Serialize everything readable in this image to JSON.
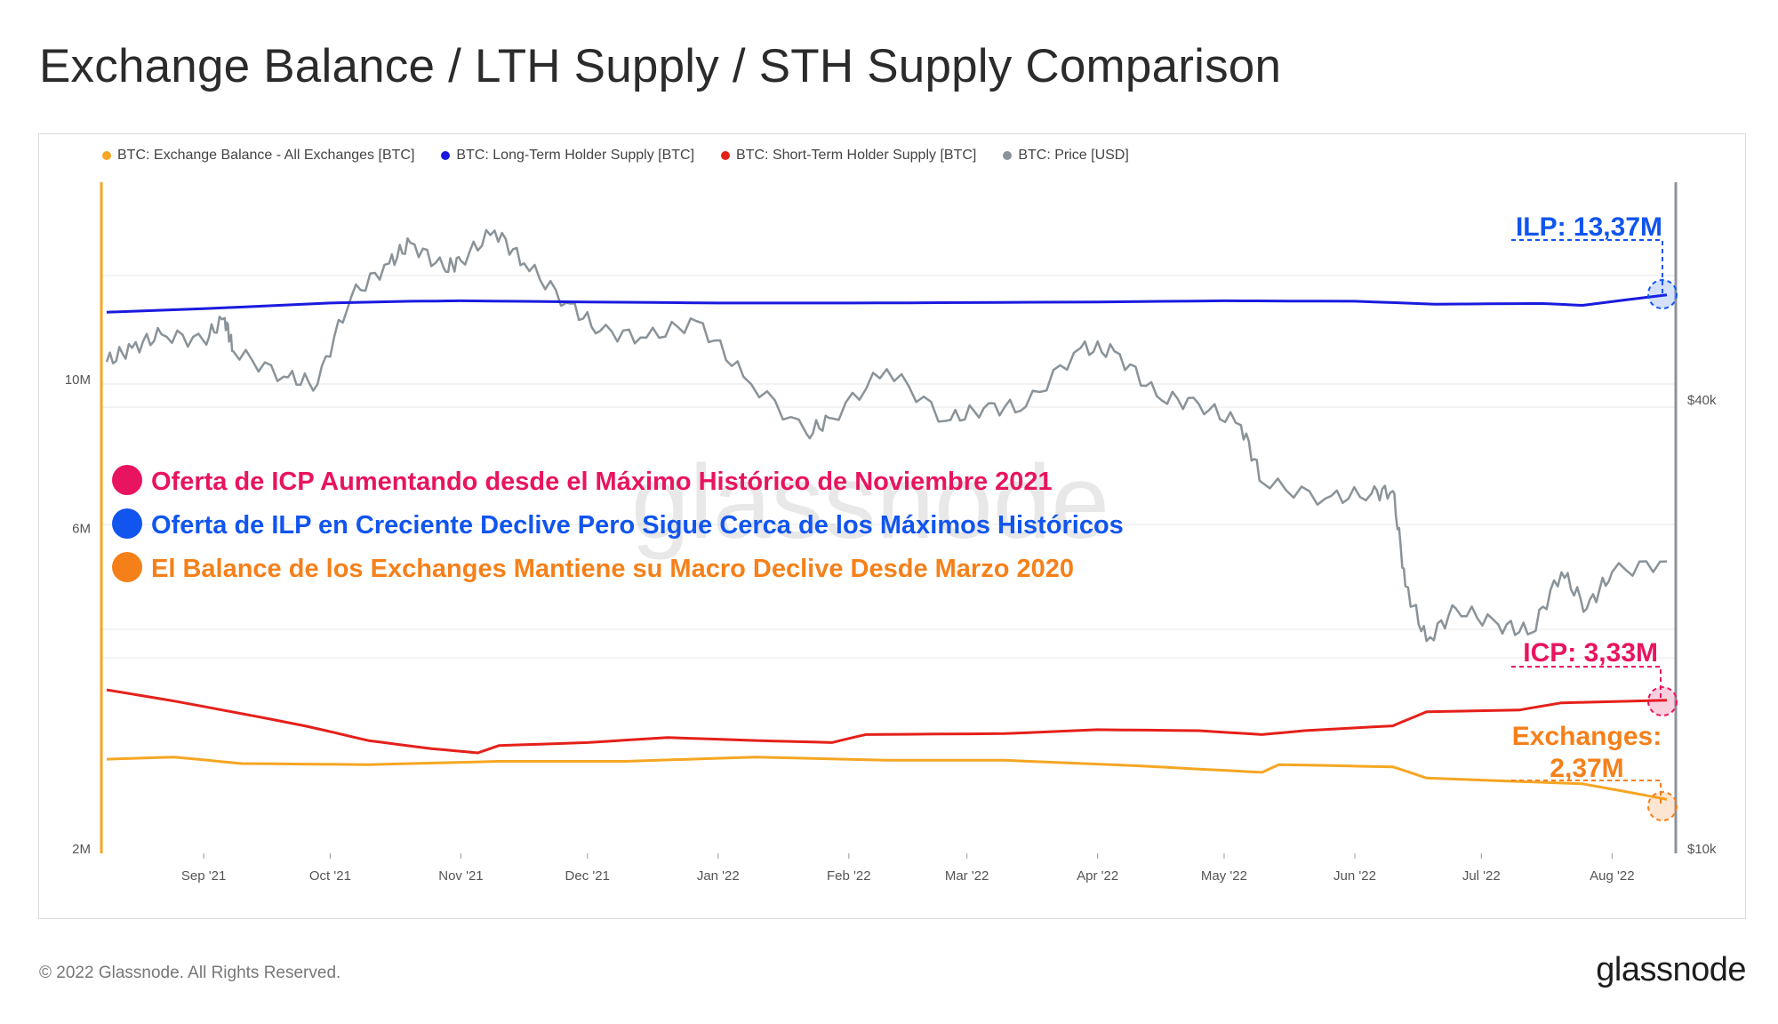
{
  "title": "Exchange Balance / LTH Supply / STH Supply Comparison",
  "footer": "© 2022 Glassnode. All Rights Reserved.",
  "brand": "glassnode",
  "watermark": "glassnode",
  "legend": [
    {
      "label": "BTC: Exchange Balance - All Exchanges [BTC]",
      "color": "#f5a623"
    },
    {
      "label": "BTC: Long-Term Holder Supply [BTC]",
      "color": "#1a1adf"
    },
    {
      "label": "BTC: Short-Term Holder Supply [BTC]",
      "color": "#e5201a"
    },
    {
      "label": "BTC: Price [USD]",
      "color": "#8a9399"
    }
  ],
  "annotations": [
    {
      "text": "Oferta de ICP Aumentando desde el Máximo Histórico de Noviembre 2021",
      "color": "#e8145f"
    },
    {
      "text": "Oferta de ILP en Creciente Declive Pero Sigue Cerca de los Máximos Históricos",
      "color": "#1155ee"
    },
    {
      "text": "El Balance de los Exchanges Mantiene su Macro Declive Desde Marzo 2020",
      "color": "#f5801a"
    }
  ],
  "end_labels": {
    "lth": {
      "text": "ILP: 13,37M",
      "color": "#1155ee"
    },
    "sth": {
      "text": "ICP: 3,33M",
      "color": "#e8145f"
    },
    "exchange_line1": "Exchanges:",
    "exchange_line2": "2,37M",
    "exchange_color": "#f5801a"
  },
  "chart_data": {
    "type": "line",
    "x_ticks": [
      "Sep '21",
      "Oct '21",
      "Nov '21",
      "Dec '21",
      "Jan '22",
      "Feb '22",
      "Mar '22",
      "Apr '22",
      "May '22",
      "Jun '22",
      "Jul '22",
      "Aug '22"
    ],
    "y_left_ticks": [
      "10M",
      "6M",
      "2M"
    ],
    "y_right_ticks": [
      "$40k",
      "$10k"
    ],
    "y_left_scale": "log",
    "y_right_scale": "log",
    "x_range": [
      "2021-08-09",
      "2022-08-14"
    ],
    "series": [
      {
        "name": "BTC: Long-Term Holder Supply [BTC]",
        "axis": "left",
        "color": "#1a1adf",
        "points": [
          [
            "2021-08-09",
            12.6
          ],
          [
            "2021-09-01",
            12.75
          ],
          [
            "2021-10-01",
            13.0
          ],
          [
            "2021-10-20",
            13.08
          ],
          [
            "2021-11-01",
            13.1
          ],
          [
            "2021-12-01",
            13.05
          ],
          [
            "2022-01-01",
            13.0
          ],
          [
            "2022-02-01",
            13.0
          ],
          [
            "2022-03-01",
            13.02
          ],
          [
            "2022-04-01",
            13.05
          ],
          [
            "2022-05-01",
            13.1
          ],
          [
            "2022-06-01",
            13.08
          ],
          [
            "2022-06-20",
            12.95
          ],
          [
            "2022-07-15",
            12.98
          ],
          [
            "2022-07-25",
            12.9
          ],
          [
            "2022-08-14",
            13.37
          ]
        ]
      },
      {
        "name": "BTC: Short-Term Holder Supply [BTC]",
        "axis": "left",
        "color": "#e5201a",
        "points": [
          [
            "2021-08-09",
            3.45
          ],
          [
            "2021-08-25",
            3.32
          ],
          [
            "2021-09-10",
            3.18
          ],
          [
            "2021-09-25",
            3.05
          ],
          [
            "2021-10-10",
            2.9
          ],
          [
            "2021-10-25",
            2.82
          ],
          [
            "2021-11-05",
            2.78
          ],
          [
            "2021-11-10",
            2.85
          ],
          [
            "2021-12-01",
            2.88
          ],
          [
            "2021-12-20",
            2.93
          ],
          [
            "2022-01-10",
            2.9
          ],
          [
            "2022-01-28",
            2.88
          ],
          [
            "2022-02-05",
            2.96
          ],
          [
            "2022-03-10",
            2.97
          ],
          [
            "2022-04-01",
            3.01
          ],
          [
            "2022-04-25",
            3.0
          ],
          [
            "2022-05-10",
            2.96
          ],
          [
            "2022-05-20",
            3.0
          ],
          [
            "2022-06-10",
            3.05
          ],
          [
            "2022-06-18",
            3.2
          ],
          [
            "2022-07-10",
            3.22
          ],
          [
            "2022-07-20",
            3.3
          ],
          [
            "2022-08-14",
            3.33
          ]
        ]
      },
      {
        "name": "BTC: Exchange Balance - All Exchanges [BTC]",
        "axis": "left",
        "color": "#f5a623",
        "points": [
          [
            "2021-08-09",
            2.72
          ],
          [
            "2021-08-25",
            2.74
          ],
          [
            "2021-09-10",
            2.68
          ],
          [
            "2021-10-10",
            2.67
          ],
          [
            "2021-11-10",
            2.7
          ],
          [
            "2021-12-10",
            2.7
          ],
          [
            "2022-01-10",
            2.74
          ],
          [
            "2022-02-10",
            2.71
          ],
          [
            "2022-03-10",
            2.71
          ],
          [
            "2022-04-10",
            2.66
          ],
          [
            "2022-05-10",
            2.6
          ],
          [
            "2022-05-14",
            2.67
          ],
          [
            "2022-06-10",
            2.65
          ],
          [
            "2022-06-18",
            2.55
          ],
          [
            "2022-07-10",
            2.52
          ],
          [
            "2022-07-25",
            2.5
          ],
          [
            "2022-08-14",
            2.37
          ]
        ]
      },
      {
        "name": "BTC: Price [USD]",
        "axis": "right",
        "color": "#8a9399",
        "points": [
          [
            "2021-08-09",
            45000
          ],
          [
            "2021-08-15",
            47000
          ],
          [
            "2021-08-22",
            49000
          ],
          [
            "2021-09-01",
            48000
          ],
          [
            "2021-09-06",
            51500
          ],
          [
            "2021-09-08",
            46500
          ],
          [
            "2021-09-20",
            43000
          ],
          [
            "2021-09-28",
            42000
          ],
          [
            "2021-10-06",
            55000
          ],
          [
            "2021-10-15",
            61000
          ],
          [
            "2021-10-20",
            65000
          ],
          [
            "2021-10-28",
            60000
          ],
          [
            "2021-11-01",
            61500
          ],
          [
            "2021-11-09",
            67500
          ],
          [
            "2021-11-16",
            61000
          ],
          [
            "2021-11-26",
            54000
          ],
          [
            "2021-12-04",
            49500
          ],
          [
            "2021-12-15",
            48500
          ],
          [
            "2021-12-27",
            51000
          ],
          [
            "2022-01-07",
            43000
          ],
          [
            "2022-01-22",
            36000
          ],
          [
            "2022-01-28",
            37800
          ],
          [
            "2022-02-10",
            44000
          ],
          [
            "2022-02-24",
            37500
          ],
          [
            "2022-03-05",
            39000
          ],
          [
            "2022-03-15",
            39200
          ],
          [
            "2022-03-28",
            47000
          ],
          [
            "2022-04-05",
            46500
          ],
          [
            "2022-04-15",
            40500
          ],
          [
            "2022-04-25",
            39500
          ],
          [
            "2022-05-05",
            37000
          ],
          [
            "2022-05-10",
            31000
          ],
          [
            "2022-05-25",
            29500
          ],
          [
            "2022-06-05",
            30000
          ],
          [
            "2022-06-10",
            30200
          ],
          [
            "2022-06-13",
            22500
          ],
          [
            "2022-06-18",
            19000
          ],
          [
            "2022-06-25",
            21000
          ],
          [
            "2022-07-05",
            20000
          ],
          [
            "2022-07-13",
            19500
          ],
          [
            "2022-07-20",
            23500
          ],
          [
            "2022-07-26",
            21000
          ],
          [
            "2022-08-01",
            23500
          ],
          [
            "2022-08-14",
            24300
          ]
        ]
      }
    ]
  }
}
